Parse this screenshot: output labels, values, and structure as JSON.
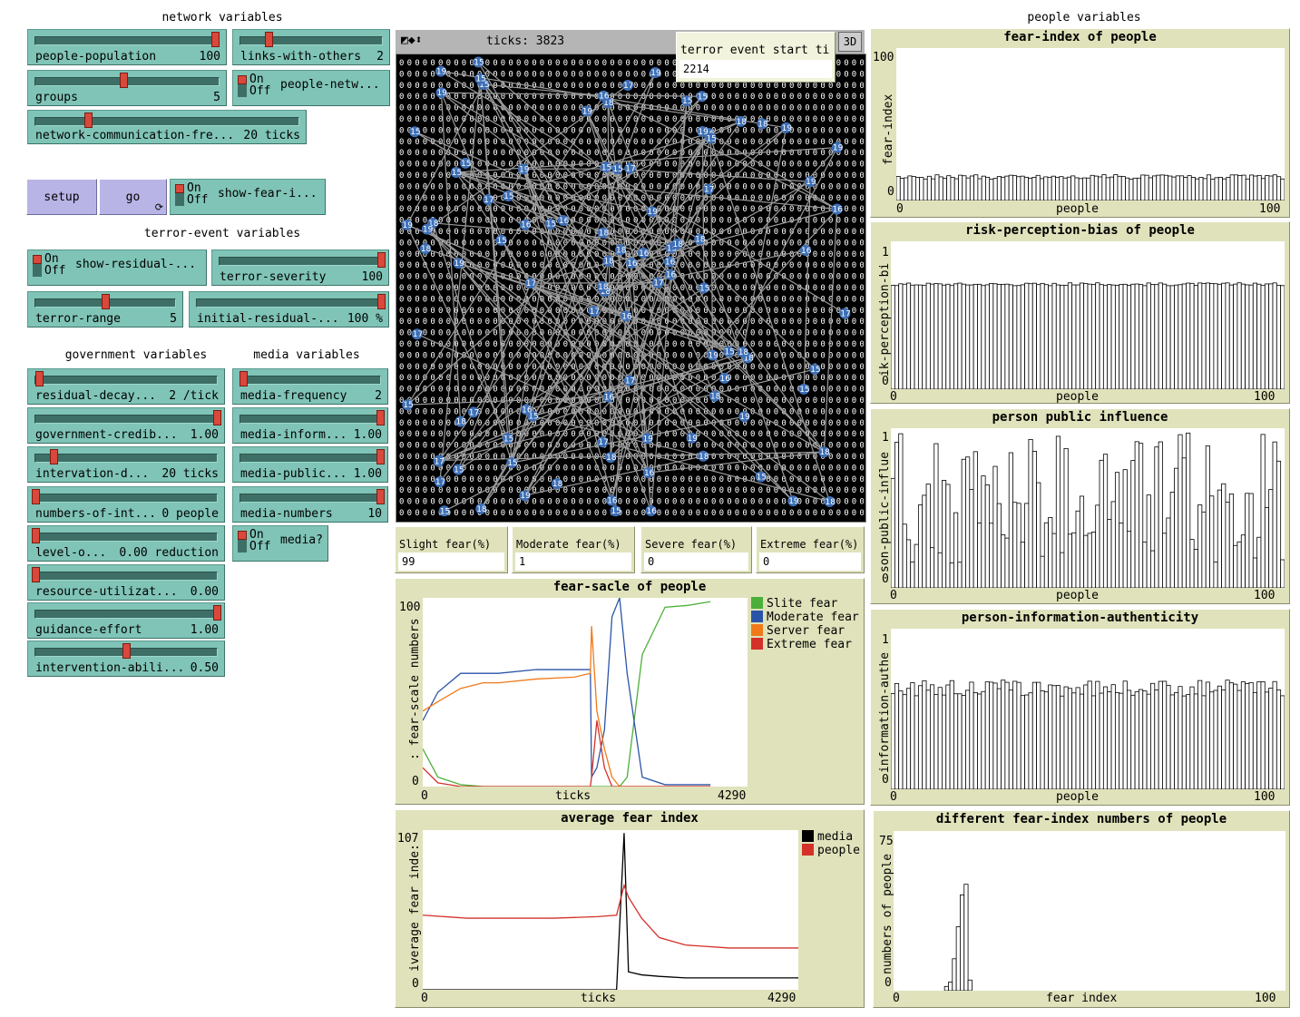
{
  "headers": {
    "network": "network variables",
    "terror": "terror-event variables",
    "government": "government variables",
    "media": "media variables",
    "people": "people variables"
  },
  "sliders": {
    "people_population": {
      "name": "people-population",
      "value": "100",
      "fraction": 0.98
    },
    "links_with_others": {
      "name": "links-with-others",
      "value": "2",
      "fraction": 0.2
    },
    "groups": {
      "name": "groups",
      "value": "5",
      "fraction": 0.48
    },
    "network_comm": {
      "name": "network-communication-fre...",
      "value": "20 ticks",
      "fraction": 0.2
    },
    "terror_severity": {
      "name": "terror-severity",
      "value": "100",
      "fraction": 1.0
    },
    "terror_range": {
      "name": "terror-range",
      "value": "5",
      "fraction": 0.5
    },
    "initial_residual": {
      "name": "initial-residual-...",
      "value": "100 %",
      "fraction": 1.0
    },
    "residual_decay": {
      "name": "residual-decay...",
      "value": "2 /tick",
      "fraction": 0.02
    },
    "government_cred": {
      "name": "government-credib...",
      "value": "1.00",
      "fraction": 1.0
    },
    "intervation_d": {
      "name": "intervation-d...",
      "value": "20 ticks",
      "fraction": 0.1
    },
    "numbers_of_int": {
      "name": "numbers-of-int...",
      "value": "0 people",
      "fraction": 0.0
    },
    "level_o": {
      "name": "level-o...",
      "value": "0.00 reduction",
      "fraction": 0.0
    },
    "resource_util": {
      "name": "resource-utilizat...",
      "value": "0.00",
      "fraction": 0.0
    },
    "guidance_effort": {
      "name": "guidance-effort",
      "value": "1.00",
      "fraction": 1.0
    },
    "intervention_abil": {
      "name": "intervention-abili...",
      "value": "0.50",
      "fraction": 0.5
    },
    "media_frequency": {
      "name": "media-frequency",
      "value": "2",
      "fraction": 0.02
    },
    "media_inform": {
      "name": "media-inform...",
      "value": "1.00",
      "fraction": 1.0
    },
    "media_public": {
      "name": "media-public...",
      "value": "1.00",
      "fraction": 1.0
    },
    "media_numbers": {
      "name": "media-numbers",
      "value": "10",
      "fraction": 1.0
    }
  },
  "switches": {
    "people_network": {
      "name": "people-netw...",
      "on": "On",
      "off": "Off"
    },
    "show_fear": {
      "name": "show-fear-i...",
      "on": "On",
      "off": "Off"
    },
    "show_residual": {
      "name": "show-residual-...",
      "on": "On",
      "off": "Off"
    },
    "media": {
      "name": "media?",
      "on": "On",
      "off": "Off"
    }
  },
  "buttons": {
    "setup": "setup",
    "go": "go",
    "go_forever": "⟳"
  },
  "world": {
    "ticks_label": "ticks: 3823",
    "btn_3d": "3D"
  },
  "monitors": {
    "terror_start": {
      "title": "terror event start ti",
      "value": "2214"
    },
    "slight": {
      "title": "Slight fear(%)",
      "value": "99"
    },
    "moderate": {
      "title": "Moderate fear(%)",
      "value": "1"
    },
    "severe": {
      "title": "Severe fear(%)",
      "value": "0"
    },
    "extreme": {
      "title": "Extreme fear(%)",
      "value": "0"
    }
  },
  "plots": {
    "fear_scale": {
      "title": "fear-sacle of people",
      "ylabel": ": fear-scale numbers -",
      "xlabel": "ticks",
      "ymax": "100",
      "ymin": "0",
      "xmin": "0",
      "xmax": "4290"
    },
    "avg_fear": {
      "title": "average fear index",
      "ylabel": "iverage fear inde:",
      "xlabel": "ticks",
      "ymax": "107",
      "ymin": "0",
      "xmin": "0",
      "xmax": "4290"
    },
    "fear_index": {
      "title": "fear-index of people",
      "ylabel": "fear-index",
      "xlabel": "people",
      "ymax": "100",
      "ymin": "0",
      "xmin": "0",
      "xmax": "100"
    },
    "risk_bias": {
      "title": "risk-perception-bias of people",
      "ylabel": "ik-perception-bi",
      "xlabel": "people",
      "ymax": "1",
      "ymin": "0",
      "xmin": "0",
      "xmax": "100"
    },
    "public_influence": {
      "title": "person public influence",
      "ylabel": "son-public-influe",
      "xlabel": "people",
      "ymax": "1",
      "ymin": "0",
      "xmin": "0",
      "xmax": "100"
    },
    "info_auth": {
      "title": "person-information-authenticity",
      "ylabel": "information-authe",
      "xlabel": "people",
      "ymax": "1",
      "ymin": "0",
      "xmin": "0",
      "xmax": "100"
    },
    "diff_fear": {
      "title": "different fear-index numbers of people",
      "ylabel": "numbers of people",
      "xlabel": "fear index",
      "ymax": "75",
      "ymin": "0",
      "xmin": "0",
      "xmax": "100"
    }
  },
  "legends": {
    "fear_scale": [
      {
        "name": "Slite fear",
        "color": "#4caf3a"
      },
      {
        "name": "Moderate fear",
        "color": "#2b54a8"
      },
      {
        "name": "Server fear",
        "color": "#f07a1a"
      },
      {
        "name": "Extreme fear",
        "color": "#d4312a"
      }
    ],
    "avg_fear": [
      {
        "name": "media",
        "color": "#000000"
      },
      {
        "name": "people",
        "color": "#d4312a"
      }
    ]
  },
  "chart_data": [
    {
      "type": "line",
      "title": "fear-sacle of people",
      "xlabel": "ticks",
      "ylabel": "fear-scale numbers",
      "xlim": [
        0,
        4290
      ],
      "ylim": [
        0,
        100
      ],
      "x": [
        0,
        200,
        500,
        800,
        1000,
        1500,
        2000,
        2214,
        2230,
        2300,
        2400,
        2500,
        2600,
        2700,
        2900,
        3200,
        3500,
        3800
      ],
      "series": [
        {
          "name": "Slite fear",
          "values": [
            20,
            5,
            1,
            0,
            0,
            0,
            0,
            0,
            0,
            0,
            0,
            0,
            0,
            5,
            70,
            95,
            96,
            98
          ]
        },
        {
          "name": "Moderate fear",
          "values": [
            35,
            50,
            60,
            60,
            60,
            62,
            62,
            62,
            5,
            10,
            30,
            90,
            100,
            60,
            5,
            1,
            1,
            1
          ]
        },
        {
          "name": "Server fear",
          "values": [
            40,
            45,
            52,
            55,
            55,
            57,
            58,
            60,
            85,
            40,
            20,
            5,
            0,
            0,
            0,
            0,
            0,
            0
          ]
        },
        {
          "name": "Extreme fear",
          "values": [
            10,
            2,
            0,
            0,
            0,
            0,
            0,
            0,
            5,
            35,
            10,
            0,
            0,
            0,
            0,
            0,
            0,
            0
          ]
        }
      ]
    },
    {
      "type": "line",
      "title": "average fear index",
      "xlabel": "ticks",
      "ylabel": "average fear index",
      "xlim": [
        0,
        4290
      ],
      "ylim": [
        0,
        107
      ],
      "x": [
        0,
        500,
        1000,
        1500,
        2000,
        2214,
        2300,
        2350,
        2500,
        2700,
        3000,
        3500,
        4000,
        4290
      ],
      "series": [
        {
          "name": "media",
          "values": [
            0,
            0,
            0,
            0,
            0,
            0,
            105,
            12,
            10,
            9,
            8,
            8,
            8,
            8
          ]
        },
        {
          "name": "people",
          "values": [
            50,
            48,
            48,
            48,
            49,
            50,
            70,
            62,
            48,
            35,
            30,
            28,
            28,
            28
          ]
        }
      ]
    },
    {
      "type": "bar",
      "title": "fear-index of people",
      "xlabel": "people",
      "ylabel": "fear-index",
      "xlim": [
        0,
        100
      ],
      "ylim": [
        0,
        100
      ],
      "values_approx": 17
    },
    {
      "type": "bar",
      "title": "risk-perception-bias of people",
      "xlabel": "people",
      "ylabel": "risk-perception-bias",
      "xlim": [
        0,
        100
      ],
      "ylim": [
        0,
        1
      ],
      "values_approx": 0.68
    },
    {
      "type": "bar",
      "title": "person public influence",
      "xlabel": "people",
      "ylabel": "person-public-influence",
      "xlim": [
        0,
        100
      ],
      "ylim": [
        0,
        1
      ]
    },
    {
      "type": "bar",
      "title": "person-information-authenticity",
      "xlabel": "people",
      "ylabel": "person-information-authenticity",
      "xlim": [
        0,
        100
      ],
      "ylim": [
        0,
        1
      ],
      "values_approx": 0.6
    },
    {
      "type": "bar",
      "title": "different fear-index numbers of people",
      "xlabel": "fear index",
      "ylabel": "numbers of people",
      "xlim": [
        0,
        100
      ],
      "ylim": [
        0,
        75
      ],
      "categories": [
        13,
        14,
        15,
        16,
        17,
        18,
        19
      ],
      "values": [
        2,
        4,
        15,
        30,
        45,
        50,
        5
      ]
    }
  ],
  "colors": {
    "slider": "#7fc4b7",
    "button": "#b9b4e6",
    "monitor": "#e0e2bb",
    "knob": "#d9483b",
    "node": "#3d6fb6"
  }
}
